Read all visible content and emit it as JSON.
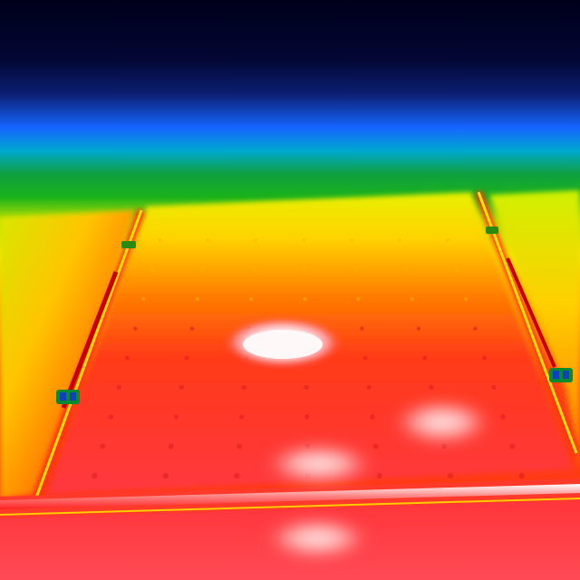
{
  "image": {
    "kind": "thermal-infrared-photo",
    "subject": "solar-panel-array",
    "palette": {
      "cold_top": "#00001a",
      "deep_blue": "#0b1d6e",
      "blue": "#1565ff",
      "cyan": "#00c2d8",
      "green": "#1ab21a",
      "yellow_green": "#b8e000",
      "yellow": "#ffe600",
      "orange": "#ff8a00",
      "red": "#ff2a1a",
      "hot_red": "#ff3b3b",
      "hot_white": "#fff4f4"
    }
  },
  "hotspots": [
    {
      "name": "hotspot-primary",
      "temperature_level": "highest"
    },
    {
      "name": "hotspot-secondary-right",
      "temperature_level": "high"
    },
    {
      "name": "hotspot-secondary-center",
      "temperature_level": "high"
    },
    {
      "name": "hotspot-lower-panel",
      "temperature_level": "high"
    }
  ]
}
